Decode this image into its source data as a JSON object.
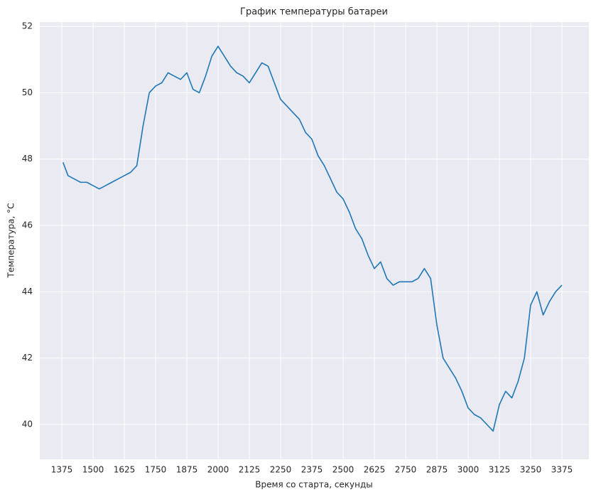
{
  "chart_data": {
    "type": "line",
    "title": "График температуры батареи",
    "x_label": "Время со старта, секунды",
    "y_label": "Температура, °C",
    "x": [
      1380,
      1400,
      1425,
      1450,
      1475,
      1500,
      1525,
      1550,
      1575,
      1600,
      1625,
      1650,
      1675,
      1700,
      1725,
      1750,
      1775,
      1800,
      1825,
      1850,
      1875,
      1900,
      1925,
      1950,
      1975,
      2000,
      2025,
      2050,
      2075,
      2100,
      2125,
      2150,
      2175,
      2200,
      2225,
      2250,
      2275,
      2300,
      2325,
      2350,
      2375,
      2400,
      2425,
      2450,
      2475,
      2500,
      2525,
      2550,
      2575,
      2600,
      2625,
      2650,
      2675,
      2700,
      2725,
      2750,
      2775,
      2800,
      2825,
      2850,
      2875,
      2900,
      2925,
      2950,
      2975,
      3000,
      3025,
      3050,
      3075,
      3100,
      3125,
      3150,
      3175,
      3200,
      3225,
      3250,
      3275,
      3300,
      3325,
      3350,
      3375
    ],
    "series": [
      {
        "color": "#1f77b4",
        "values": [
          47.9,
          47.5,
          47.4,
          47.3,
          47.3,
          47.2,
          47.1,
          47.2,
          47.3,
          47.4,
          47.5,
          47.6,
          47.8,
          49.0,
          50.0,
          50.2,
          50.3,
          50.6,
          50.5,
          50.4,
          50.6,
          50.1,
          50.0,
          50.5,
          51.1,
          51.4,
          51.1,
          50.8,
          50.6,
          50.5,
          50.3,
          50.6,
          50.9,
          50.8,
          50.3,
          49.8,
          49.6,
          49.4,
          49.2,
          48.8,
          48.6,
          48.1,
          47.8,
          47.4,
          47.0,
          46.8,
          46.4,
          45.9,
          45.6,
          45.1,
          44.7,
          44.9,
          44.4,
          44.2,
          44.3,
          44.3,
          44.3,
          44.4,
          44.7,
          44.4,
          43.0,
          42.0,
          41.7,
          41.4,
          41.0,
          40.5,
          40.3,
          40.2,
          40.0,
          39.8,
          40.6,
          41.0,
          40.8,
          41.3,
          42.0,
          43.6,
          44.0,
          43.3,
          43.7,
          44.0,
          44.2
        ]
      }
    ],
    "xlim": [
      1287,
      3483
    ],
    "ylim": [
      38.95,
      52.13
    ],
    "xticks": [
      1375,
      1500,
      1625,
      1750,
      1875,
      2000,
      2125,
      2250,
      2375,
      2500,
      2625,
      2750,
      2875,
      3000,
      3125,
      3250,
      3375
    ],
    "yticks": [
      40,
      42,
      44,
      46,
      48,
      50,
      52
    ],
    "grid": true
  }
}
